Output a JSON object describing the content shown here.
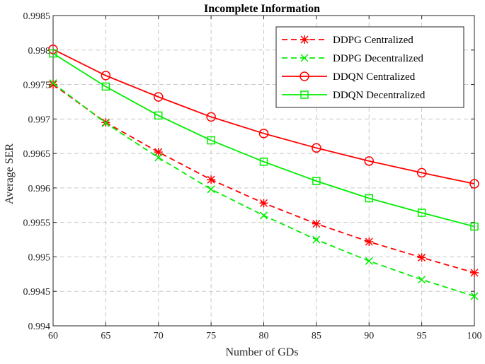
{
  "chart_data": {
    "type": "line",
    "title": "Incomplete Information",
    "xlabel": "Number of GDs",
    "ylabel": "Average SER",
    "xlim": [
      60,
      100
    ],
    "ylim": [
      0.994,
      0.9985
    ],
    "x_ticks": [
      60,
      65,
      70,
      75,
      80,
      85,
      90,
      95,
      100
    ],
    "x_tick_labels": [
      "60",
      "65",
      "70",
      "75",
      "80",
      "85",
      "90",
      "95",
      "100"
    ],
    "y_ticks": [
      0.994,
      0.9945,
      0.995,
      0.9955,
      0.996,
      0.9965,
      0.997,
      0.9975,
      0.998,
      0.9985
    ],
    "y_tick_labels": [
      "0.994",
      "0.9945",
      "0.995",
      "0.9955",
      "0.996",
      "0.9965",
      "0.997",
      "0.9975",
      "0.998",
      "0.9985"
    ],
    "grid": true,
    "legend_position": "top-right",
    "x": [
      60,
      65,
      70,
      75,
      80,
      85,
      90,
      95,
      100
    ],
    "series": [
      {
        "name": "DDPG Centralized",
        "color": "#ff0000",
        "line_style": "dashed",
        "marker": "asterisk",
        "values": [
          0.9975,
          0.99695,
          0.99652,
          0.99612,
          0.99578,
          0.99548,
          0.99522,
          0.99499,
          0.99477
        ]
      },
      {
        "name": "DDPG Decentralized",
        "color": "#00ee00",
        "line_style": "dashed",
        "marker": "x",
        "values": [
          0.99752,
          0.99694,
          0.99644,
          0.99598,
          0.9956,
          0.99525,
          0.99494,
          0.99467,
          0.99443
        ]
      },
      {
        "name": "DDQN Centralized",
        "color": "#ff0000",
        "line_style": "solid",
        "marker": "circle",
        "values": [
          0.99801,
          0.99763,
          0.99732,
          0.99703,
          0.99679,
          0.99658,
          0.99639,
          0.99622,
          0.99606
        ]
      },
      {
        "name": "DDQN Decentralized",
        "color": "#00ee00",
        "line_style": "solid",
        "marker": "square",
        "values": [
          0.99795,
          0.99747,
          0.99705,
          0.99669,
          0.99638,
          0.9961,
          0.99585,
          0.99564,
          0.99544
        ]
      }
    ]
  }
}
